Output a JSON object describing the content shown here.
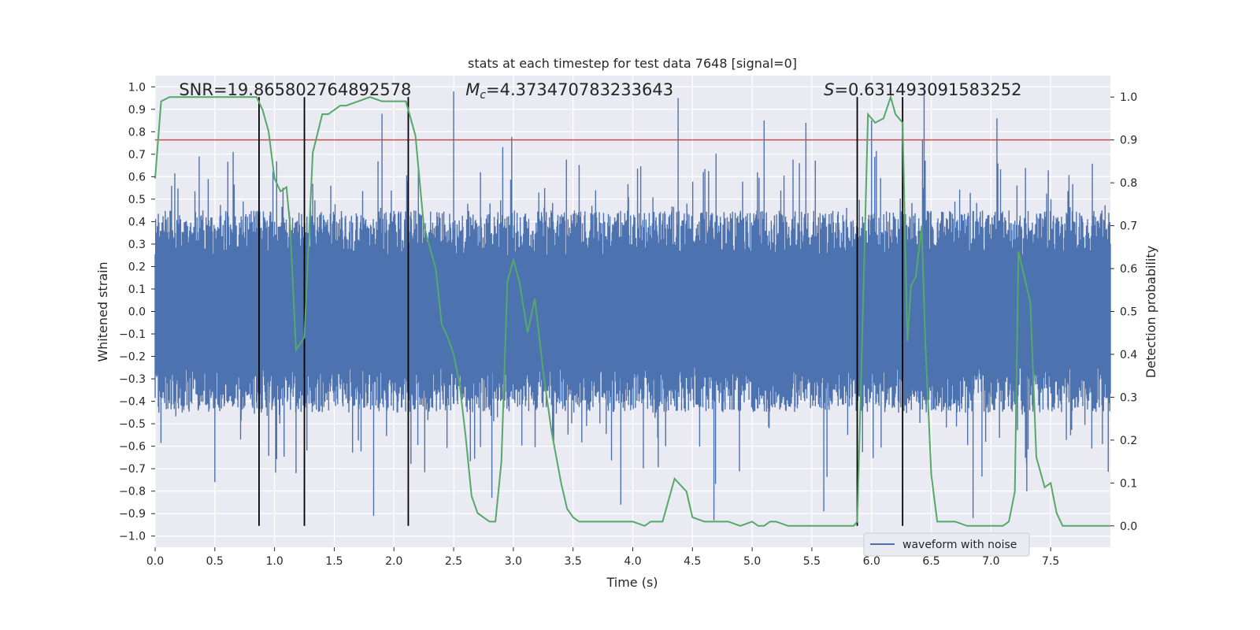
{
  "chart_data": {
    "type": "line",
    "title": "stats at each timestep for test data 7648 [signal=0]",
    "xlabel": "Time (s)",
    "ylabel_left": "Whitened strain",
    "ylabel_right": "Detection probability",
    "xlim": [
      0.0,
      8.0
    ],
    "ylim_left": [
      -1.05,
      1.05
    ],
    "ylim_right": [
      -0.05,
      1.05
    ],
    "x_ticks": [
      0.0,
      0.5,
      1.0,
      1.5,
      2.0,
      2.5,
      3.0,
      3.5,
      4.0,
      4.5,
      5.0,
      5.5,
      6.0,
      6.5,
      7.0,
      7.5
    ],
    "x_tick_labels": [
      "0.0",
      "0.5",
      "1.0",
      "1.5",
      "2.0",
      "2.5",
      "3.0",
      "3.5",
      "4.0",
      "4.5",
      "5.0",
      "5.5",
      "6.0",
      "6.5",
      "7.0",
      "7.5"
    ],
    "y_left_ticks": [
      1.0,
      0.9,
      0.8,
      0.7,
      0.6,
      0.5,
      0.4,
      0.3,
      0.2,
      0.1,
      0.0,
      -0.1,
      -0.2,
      -0.3,
      -0.4,
      -0.5,
      -0.6,
      -0.7,
      -0.8,
      -0.9,
      -1.0
    ],
    "y_left_tick_labels": [
      "1.0",
      "0.9",
      "0.8",
      "0.7",
      "0.6",
      "0.5",
      "0.4",
      "0.3",
      "0.2",
      "0.1",
      "0.0",
      "−0.1",
      "−0.2",
      "−0.3",
      "−0.4",
      "−0.5",
      "−0.6",
      "−0.7",
      "−0.8",
      "−0.9",
      "−1.0"
    ],
    "y_right_ticks": [
      1.0,
      0.9,
      0.8,
      0.7,
      0.6,
      0.5,
      0.4,
      0.3,
      0.2,
      0.1,
      0.0
    ],
    "y_right_tick_labels": [
      "1.0",
      "0.9",
      "0.8",
      "0.7",
      "0.6",
      "0.5",
      "0.4",
      "0.3",
      "0.2",
      "0.1",
      "0.0"
    ],
    "grid": true,
    "legend": {
      "placement": "lower-right",
      "entries": [
        {
          "name": "waveform with noise",
          "color": "#4c72b0"
        }
      ]
    },
    "annotations": [
      {
        "prefix": "SNR",
        "text": "=19.865802764892578",
        "x": 0.2
      },
      {
        "prefix": "M",
        "subscript": "c",
        "text": "=4.373470783233643",
        "x": 2.6
      },
      {
        "prefix": "S",
        "text": "=0.631493091583252",
        "x": 5.6
      }
    ],
    "threshold": {
      "value": 0.9,
      "axis": "right",
      "color": "#c44e52"
    },
    "event_markers": [
      0.87,
      1.25,
      2.12,
      5.88,
      6.26
    ],
    "waveform": {
      "name": "waveform with noise",
      "color": "#4c72b0",
      "x_range": [
        0.0,
        8.0
      ],
      "typical_envelope": [
        -0.45,
        0.45
      ],
      "peaks": [
        {
          "x": 2.5,
          "y": 0.98
        },
        {
          "x": 4.38,
          "y": 0.95
        },
        {
          "x": 6.44,
          "y": 1.0
        },
        {
          "x": 1.9,
          "y": 0.88
        },
        {
          "x": 6.0,
          "y": 0.85
        },
        {
          "x": 5.45,
          "y": 0.84
        },
        {
          "x": 5.1,
          "y": 0.85
        },
        {
          "x": 7.05,
          "y": 0.86
        },
        {
          "x": 1.83,
          "y": -0.91
        },
        {
          "x": 4.68,
          "y": -0.93
        },
        {
          "x": 6.85,
          "y": -0.92
        },
        {
          "x": 2.82,
          "y": -0.83
        },
        {
          "x": 3.9,
          "y": -0.86
        },
        {
          "x": 5.6,
          "y": -0.89
        },
        {
          "x": 0.5,
          "y": -0.76
        },
        {
          "x": 1.18,
          "y": -0.72
        },
        {
          "x": 7.3,
          "y": -0.8
        }
      ]
    },
    "series": [
      {
        "name": "detection probability",
        "color": "#55a868",
        "axis": "right",
        "x": [
          0.0,
          0.05,
          0.12,
          0.2,
          0.3,
          0.5,
          0.7,
          0.8,
          0.85,
          0.9,
          0.95,
          1.0,
          1.05,
          1.1,
          1.13,
          1.18,
          1.25,
          1.32,
          1.4,
          1.45,
          1.5,
          1.55,
          1.6,
          1.7,
          1.8,
          1.9,
          2.0,
          2.1,
          2.18,
          2.25,
          2.3,
          2.35,
          2.4,
          2.45,
          2.5,
          2.55,
          2.6,
          2.65,
          2.7,
          2.75,
          2.8,
          2.85,
          2.9,
          2.95,
          3.0,
          3.05,
          3.12,
          3.18,
          3.25,
          3.32,
          3.4,
          3.45,
          3.5,
          3.55,
          3.6,
          3.7,
          3.8,
          3.9,
          4.0,
          4.1,
          4.15,
          4.25,
          4.35,
          4.45,
          4.5,
          4.6,
          4.7,
          4.8,
          4.9,
          5.0,
          5.05,
          5.1,
          5.15,
          5.2,
          5.3,
          5.5,
          5.7,
          5.8,
          5.85,
          5.88,
          5.92,
          5.97,
          6.03,
          6.1,
          6.16,
          6.2,
          6.26,
          6.3,
          6.33,
          6.37,
          6.42,
          6.45,
          6.5,
          6.55,
          6.6,
          6.7,
          6.8,
          6.9,
          7.0,
          7.05,
          7.1,
          7.15,
          7.2,
          7.23,
          7.28,
          7.33,
          7.38,
          7.45,
          7.5,
          7.55,
          7.6,
          7.7,
          7.8,
          7.9,
          8.0
        ],
        "values": [
          0.81,
          0.99,
          1.0,
          1.0,
          1.0,
          1.0,
          1.0,
          1.0,
          1.0,
          0.97,
          0.92,
          0.81,
          0.78,
          0.79,
          0.7,
          0.41,
          0.44,
          0.87,
          0.96,
          0.96,
          0.97,
          0.98,
          0.98,
          0.99,
          1.0,
          0.99,
          0.99,
          0.99,
          0.91,
          0.7,
          0.65,
          0.6,
          0.47,
          0.44,
          0.4,
          0.33,
          0.21,
          0.07,
          0.03,
          0.02,
          0.01,
          0.01,
          0.15,
          0.57,
          0.62,
          0.57,
          0.45,
          0.53,
          0.36,
          0.22,
          0.1,
          0.04,
          0.02,
          0.01,
          0.01,
          0.01,
          0.01,
          0.01,
          0.01,
          0.0,
          0.01,
          0.01,
          0.11,
          0.08,
          0.02,
          0.01,
          0.01,
          0.01,
          0.0,
          0.01,
          0.0,
          0.0,
          0.01,
          0.01,
          0.0,
          0.0,
          0.0,
          0.0,
          0.0,
          0.01,
          0.42,
          0.96,
          0.94,
          0.95,
          1.0,
          0.96,
          0.94,
          0.43,
          0.56,
          0.58,
          0.7,
          0.43,
          0.12,
          0.01,
          0.01,
          0.01,
          0.0,
          0.0,
          0.0,
          0.0,
          0.0,
          0.01,
          0.08,
          0.64,
          0.58,
          0.52,
          0.16,
          0.09,
          0.1,
          0.03,
          0.0,
          0.0,
          0.0,
          0.0,
          0.0
        ]
      }
    ]
  }
}
